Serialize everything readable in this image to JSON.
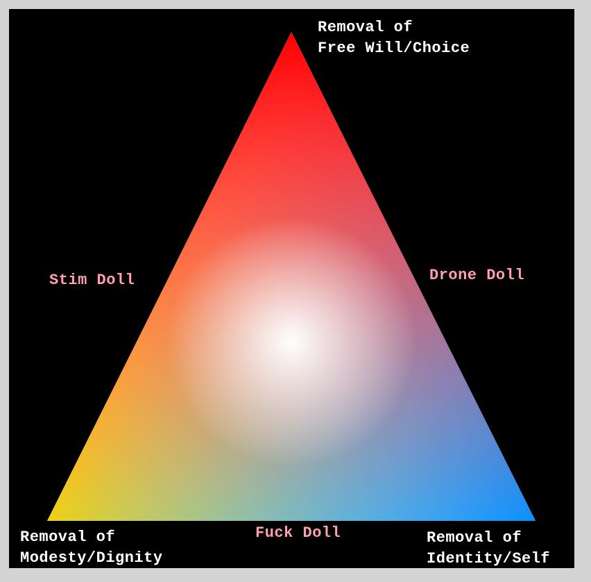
{
  "vertices": {
    "top": {
      "line1": "Removal of",
      "line2": "Free Will/Choice",
      "color": "#ff0000"
    },
    "bottom_left": {
      "line1": "Removal of",
      "line2": "Modesty/Dignity",
      "color": "#ffd700"
    },
    "bottom_right": {
      "line1": "Removal of",
      "line2": "Identity/Self",
      "color": "#0a90ff"
    }
  },
  "edges": {
    "left": {
      "label": "Stim Doll"
    },
    "right": {
      "label": "Drone Doll"
    },
    "bottom": {
      "label": "Fuck Doll"
    }
  },
  "colors": {
    "background": "#000000",
    "frame": "#d3d3d3",
    "vertex_label": "#ffffff",
    "edge_label": "#ff9fb0"
  }
}
